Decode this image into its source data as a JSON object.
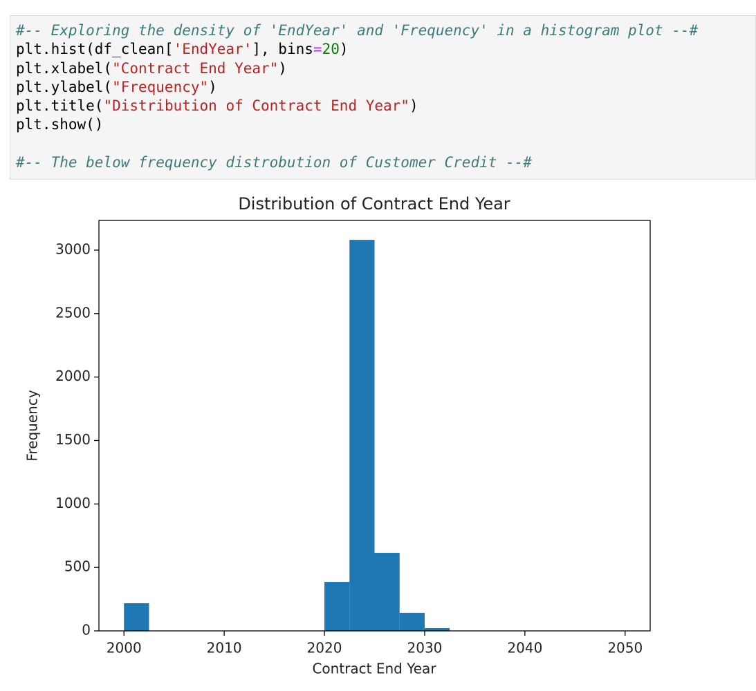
{
  "code": {
    "lines": [
      [
        {
          "text": "#-- Exploring the density of 'EndYear' and 'Frequency' in a histogram plot --#",
          "color": "#3d7b7b",
          "italic": true
        }
      ],
      [
        {
          "text": "plt.hist(df_clean[",
          "color": "#000000"
        },
        {
          "text": "'EndYear'",
          "color": "#ba2121"
        },
        {
          "text": "], bins",
          "color": "#000000"
        },
        {
          "text": "=",
          "color": "#aa22ff"
        },
        {
          "text": "20",
          "color": "#008000"
        },
        {
          "text": ")",
          "color": "#000000"
        }
      ],
      [
        {
          "text": "plt.xlabel(",
          "color": "#000000"
        },
        {
          "text": "\"Contract End Year\"",
          "color": "#ba2121"
        },
        {
          "text": ")",
          "color": "#000000"
        }
      ],
      [
        {
          "text": "plt.ylabel(",
          "color": "#000000"
        },
        {
          "text": "\"Frequency\"",
          "color": "#ba2121"
        },
        {
          "text": ")",
          "color": "#000000"
        }
      ],
      [
        {
          "text": "plt.title(",
          "color": "#000000"
        },
        {
          "text": "\"Distribution of Contract End Year\"",
          "color": "#ba2121"
        },
        {
          "text": ")",
          "color": "#000000"
        }
      ],
      [
        {
          "text": "plt.show()",
          "color": "#000000"
        }
      ],
      [],
      [
        {
          "text": "#-- The below frequency distrobution of Customer Credit --#",
          "color": "#3d7b7b",
          "italic": true
        }
      ]
    ]
  },
  "chart_data": {
    "type": "histogram",
    "title": "Distribution of Contract End Year",
    "x_label": "Contract End Year",
    "y_label": "Frequency",
    "color": "#1f77b4",
    "bins": [
      2000,
      2002.5,
      2005,
      2007.5,
      2010,
      2012.5,
      2015,
      2017.5,
      2020,
      2022.5,
      2025,
      2027.5,
      2030,
      2032.5,
      2035,
      2037.5,
      2040,
      2042.5,
      2045,
      2047.5,
      2050
    ],
    "counts": [
      218,
      0,
      0,
      0,
      0,
      0,
      0,
      0,
      386,
      3081,
      615,
      142,
      22,
      0,
      0,
      0,
      0,
      0,
      0,
      0
    ],
    "xlim": [
      1997.5,
      2052.5
    ],
    "xticks": [
      2000,
      2010,
      2020,
      2030,
      2040,
      2050
    ],
    "ylim": [
      0,
      3234
    ],
    "yticks": [
      0,
      500,
      1000,
      1500,
      2000,
      2500,
      3000
    ]
  }
}
